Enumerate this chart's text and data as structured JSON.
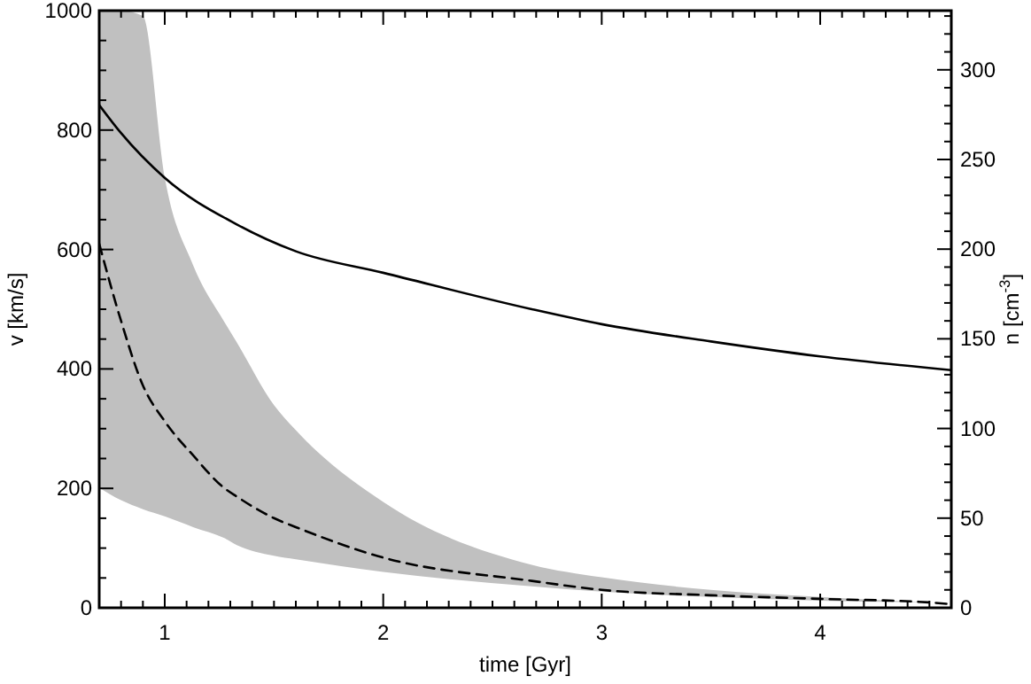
{
  "chart_data": {
    "type": "line",
    "xlabel": "time [Gyr]",
    "ylabel": "v [km/s]",
    "y2label": "n [cm$^{-3}$]",
    "xlim": [
      0.7,
      4.6
    ],
    "xticks": [
      {
        "value": 0.7,
        "label": null
      },
      {
        "value": 0.8,
        "label": null
      },
      {
        "value": 0.9,
        "label": null
      },
      1,
      {
        "value": 1.1,
        "label": null
      },
      {
        "value": 1.2,
        "label": null
      },
      {
        "value": 1.3,
        "label": null
      },
      {
        "value": 1.4,
        "label": null
      },
      {
        "value": 1.5,
        "label": null
      },
      {
        "value": 1.6,
        "label": null
      },
      {
        "value": 1.7,
        "label": null
      },
      {
        "value": 1.8,
        "label": null
      },
      {
        "value": 1.9,
        "label": null
      },
      2,
      {
        "value": 2.1,
        "label": null
      },
      {
        "value": 2.2,
        "label": null
      },
      {
        "value": 2.3,
        "label": null
      },
      {
        "value": 2.4,
        "label": null
      },
      {
        "value": 2.5,
        "label": null
      },
      {
        "value": 2.6,
        "label": null
      },
      {
        "value": 2.7,
        "label": null
      },
      {
        "value": 2.8,
        "label": null
      },
      {
        "value": 2.9,
        "label": null
      },
      3,
      {
        "value": 3.1,
        "label": null
      },
      {
        "value": 3.2,
        "label": null
      },
      {
        "value": 3.3,
        "label": null
      },
      {
        "value": 3.4,
        "label": null
      },
      {
        "value": 3.5,
        "label": null
      },
      {
        "value": 3.6,
        "label": null
      },
      {
        "value": 3.7,
        "label": null
      },
      {
        "value": 3.8,
        "label": null
      },
      {
        "value": 3.9,
        "label": null
      },
      4,
      {
        "value": 4.1,
        "label": null
      },
      {
        "value": 4.2,
        "label": null
      },
      {
        "value": 4.3,
        "label": null
      },
      {
        "value": 4.4,
        "label": null
      },
      {
        "value": 4.5,
        "label": null
      }
    ],
    "ylim": [
      0,
      1000
    ],
    "yticks": [
      0,
      {
        "value": 50,
        "label": null
      },
      {
        "value": 100,
        "label": null
      },
      {
        "value": 150,
        "label": null
      },
      200,
      {
        "value": 250,
        "label": null
      },
      {
        "value": 300,
        "label": null
      },
      {
        "value": 350,
        "label": null
      },
      400,
      {
        "value": 450,
        "label": null
      },
      {
        "value": 500,
        "label": null
      },
      {
        "value": 550,
        "label": null
      },
      600,
      {
        "value": 650,
        "label": null
      },
      {
        "value": 700,
        "label": null
      },
      {
        "value": 750,
        "label": null
      },
      800,
      {
        "value": 850,
        "label": null
      },
      {
        "value": 900,
        "label": null
      },
      {
        "value": 950,
        "label": null
      },
      1000
    ],
    "y2lim": [
      0,
      333
    ],
    "y2ticks": [
      0,
      {
        "value": 10,
        "label": null
      },
      {
        "value": 20,
        "label": null
      },
      {
        "value": 30,
        "label": null
      },
      {
        "value": 40,
        "label": null
      },
      50,
      {
        "value": 60,
        "label": null
      },
      {
        "value": 70,
        "label": null
      },
      {
        "value": 80,
        "label": null
      },
      {
        "value": 90,
        "label": null
      },
      100,
      {
        "value": 110,
        "label": null
      },
      {
        "value": 120,
        "label": null
      },
      {
        "value": 130,
        "label": null
      },
      {
        "value": 140,
        "label": null
      },
      150,
      {
        "value": 160,
        "label": null
      },
      {
        "value": 170,
        "label": null
      },
      {
        "value": 180,
        "label": null
      },
      {
        "value": 190,
        "label": null
      },
      200,
      {
        "value": 210,
        "label": null
      },
      {
        "value": 220,
        "label": null
      },
      {
        "value": 230,
        "label": null
      },
      {
        "value": 240,
        "label": null
      },
      250,
      {
        "value": 260,
        "label": null
      },
      {
        "value": 270,
        "label": null
      },
      {
        "value": 280,
        "label": null
      },
      {
        "value": 290,
        "label": null
      },
      300,
      {
        "value": 310,
        "label": null
      },
      {
        "value": 320,
        "label": null
      },
      {
        "value": 330,
        "label": null
      }
    ],
    "grid": false,
    "series": [
      {
        "color": "#000000",
        "line_style": "solid",
        "x": [
          0.7,
          0.8,
          1.0,
          1.33,
          1.6,
          2.0,
          2.68,
          3.0,
          3.5,
          4.0,
          4.6
        ],
        "values": [
          842,
          795,
          720,
          642,
          597,
          561,
          500,
          475,
          446,
          421,
          398
        ]
      },
      {
        "color": "#000000",
        "line_style": "dashed",
        "axis": "y2",
        "x": [
          0.7,
          0.8,
          0.9,
          1.0,
          1.13,
          1.27,
          1.33,
          1.5,
          1.6,
          2.0,
          2.68,
          3.0,
          3.5,
          4.0,
          4.5,
          4.6
        ],
        "values": [
          203,
          160,
          124,
          104,
          85,
          67,
          62,
          50,
          45,
          28,
          15,
          10,
          7,
          5,
          3,
          2
        ],
        "lower": [
          67,
          60,
          55,
          51,
          45,
          39,
          35,
          29,
          27,
          20,
          12,
          9,
          6,
          4,
          3,
          null
        ],
        "upper": [
          333,
          333,
          330,
          240,
          191,
          160,
          148,
          113,
          99,
          59,
          24,
          17,
          10,
          6,
          3,
          null
        ]
      }
    ]
  }
}
